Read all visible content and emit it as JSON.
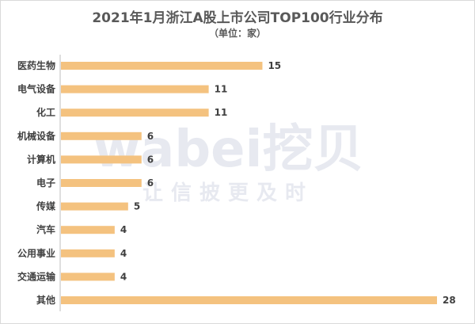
{
  "chart_data": {
    "type": "bar",
    "orientation": "horizontal",
    "title": "2021年1月浙江A股上市公司TOP100行业分布",
    "subtitle": "（单位：家）",
    "categories": [
      "医药生物",
      "电气设备",
      "化工",
      "机械设备",
      "计算机",
      "电子",
      "传媒",
      "汽车",
      "公用事业",
      "交通运输",
      "其他"
    ],
    "values": [
      15,
      11,
      11,
      6,
      6,
      6,
      5,
      4,
      4,
      4,
      28
    ],
    "xlim": [
      0,
      28
    ],
    "grid": false,
    "legend": "none",
    "bar_color": "#f4c27f",
    "axis_color": "#bfbfbf"
  },
  "watermark": {
    "brand": "wabei挖贝",
    "slogan": "让信披更及时"
  }
}
